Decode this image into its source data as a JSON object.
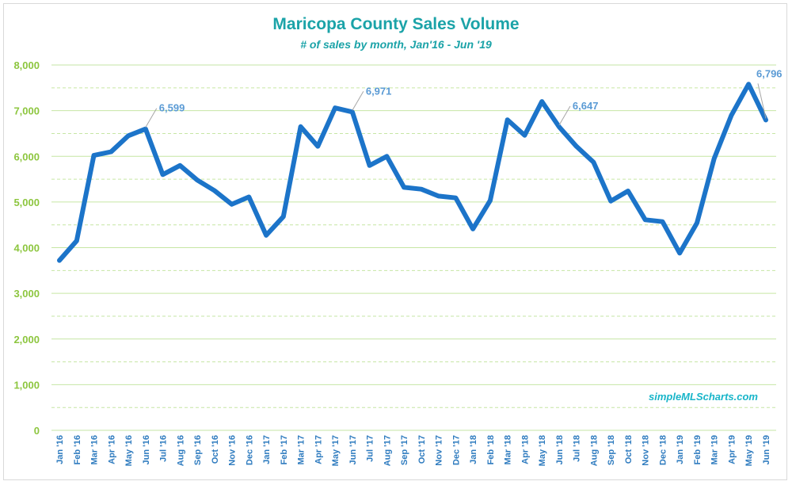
{
  "chart_data": {
    "type": "line",
    "title": "Maricopa County Sales Volume",
    "subtitle": "# of sales by month, Jan'16 - Jun '19",
    "xlabel": "",
    "ylabel": "",
    "ylim": [
      0,
      8000
    ],
    "yticks": [
      0,
      1000,
      2000,
      3000,
      4000,
      5000,
      6000,
      7000,
      8000
    ],
    "ytick_labels": [
      "0",
      "1,000",
      "2,000",
      "3,000",
      "4,000",
      "5,000",
      "6,000",
      "7,000",
      "8,000"
    ],
    "categories": [
      "Jan '16",
      "Feb '16",
      "Mar '16",
      "Apr '16",
      "May '16",
      "Jun '16",
      "Jul '16",
      "Aug '16",
      "Sep '16",
      "Oct '16",
      "Nov '16",
      "Dec '16",
      "Jan '17",
      "Feb '17",
      "Mar '17",
      "Apr '17",
      "May '17",
      "Jun '17",
      "Jul '17",
      "Aug '17",
      "Sep '17",
      "Oct '17",
      "Nov '17",
      "Dec '17",
      "Jan '18",
      "Feb '18",
      "Mar '18",
      "Apr '18",
      "May '18",
      "Jun '18",
      "Jul '18",
      "Aug '18",
      "Sep '18",
      "Oct '18",
      "Nov '18",
      "Dec '18",
      "Jan '19",
      "Feb '19",
      "Mar '19",
      "Apr '19",
      "May '19",
      "Jun '19"
    ],
    "series": [
      {
        "name": "Sales",
        "color": "#1c74c9",
        "values": [
          3720,
          4150,
          6020,
          6100,
          6450,
          6599,
          5600,
          5800,
          5480,
          5250,
          4950,
          5110,
          4270,
          4680,
          6650,
          6220,
          7060,
          6971,
          5800,
          6000,
          5320,
          5280,
          5130,
          5090,
          4410,
          5030,
          6800,
          6460,
          7200,
          6647,
          6220,
          5870,
          5020,
          5240,
          4610,
          4570,
          3880,
          4540,
          5950,
          6900,
          7580,
          6796
        ]
      }
    ],
    "annotations": [
      {
        "index": 5,
        "label": "6,599"
      },
      {
        "index": 17,
        "label": "6,971"
      },
      {
        "index": 29,
        "label": "6,647"
      },
      {
        "index": 41,
        "label": "6,796"
      }
    ],
    "grid": true,
    "legend": "none",
    "watermark": "simpleMLScharts.com",
    "colors": {
      "title": "#1ba3a8",
      "ytick": "#8dc63f",
      "xtick": "#2e7bbf",
      "grid": "#c6e6a4",
      "label": "#5b9bd5",
      "watermark": "#18b5c9"
    }
  }
}
